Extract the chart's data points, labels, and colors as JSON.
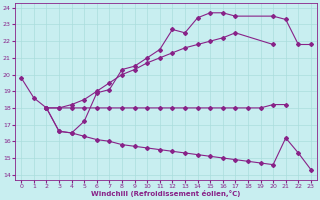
{
  "xlabel": "Windchill (Refroidissement éolien,°C)",
  "xlim": [
    -0.5,
    23.5
  ],
  "ylim": [
    13.7,
    24.3
  ],
  "xticks": [
    0,
    1,
    2,
    3,
    4,
    5,
    6,
    7,
    8,
    9,
    10,
    11,
    12,
    13,
    14,
    15,
    16,
    17,
    18,
    19,
    20,
    21,
    22,
    23
  ],
  "yticks": [
    14,
    15,
    16,
    17,
    18,
    19,
    20,
    21,
    22,
    23,
    24
  ],
  "background_color": "#c8eef0",
  "grid_color": "#aadddd",
  "line_color": "#882288",
  "lines": [
    {
      "x": [
        0,
        1,
        2,
        3,
        4,
        5,
        6,
        7,
        8,
        9,
        10,
        11,
        12,
        13,
        14,
        15,
        16,
        17,
        20,
        21,
        22,
        23
      ],
      "y": [
        19.8,
        18.6,
        18.0,
        16.6,
        16.5,
        17.2,
        18.9,
        19.1,
        20.3,
        20.5,
        21.0,
        21.5,
        22.7,
        22.5,
        23.4,
        23.7,
        23.7,
        23.5,
        23.5,
        23.3,
        21.8,
        21.8
      ]
    },
    {
      "x": [
        2,
        3,
        4,
        5,
        6,
        7,
        8,
        9,
        10,
        11,
        12,
        13,
        14,
        15,
        16,
        17,
        20
      ],
      "y": [
        18.0,
        18.0,
        18.2,
        18.5,
        19.0,
        19.5,
        20.0,
        20.3,
        20.7,
        21.0,
        21.3,
        21.6,
        21.8,
        22.0,
        22.2,
        22.5,
        21.8
      ]
    },
    {
      "x": [
        2,
        3,
        4,
        5,
        6,
        7,
        8,
        9,
        10,
        11,
        12,
        13,
        14,
        15,
        16,
        17,
        18,
        19,
        20,
        21
      ],
      "y": [
        18.0,
        18.0,
        18.0,
        18.0,
        18.0,
        18.0,
        18.0,
        18.0,
        18.0,
        18.0,
        18.0,
        18.0,
        18.0,
        18.0,
        18.0,
        18.0,
        18.0,
        18.0,
        18.2,
        18.2
      ]
    },
    {
      "x": [
        2,
        3,
        4,
        5,
        6,
        7,
        8,
        9,
        10,
        11,
        12,
        13,
        14,
        15,
        16,
        17,
        18,
        19,
        20,
        21,
        22,
        23
      ],
      "y": [
        18.0,
        16.6,
        16.5,
        16.3,
        16.1,
        16.0,
        15.8,
        15.7,
        15.6,
        15.5,
        15.4,
        15.3,
        15.2,
        15.1,
        15.0,
        14.9,
        14.8,
        14.7,
        14.6,
        16.2,
        15.3,
        14.3
      ]
    }
  ]
}
